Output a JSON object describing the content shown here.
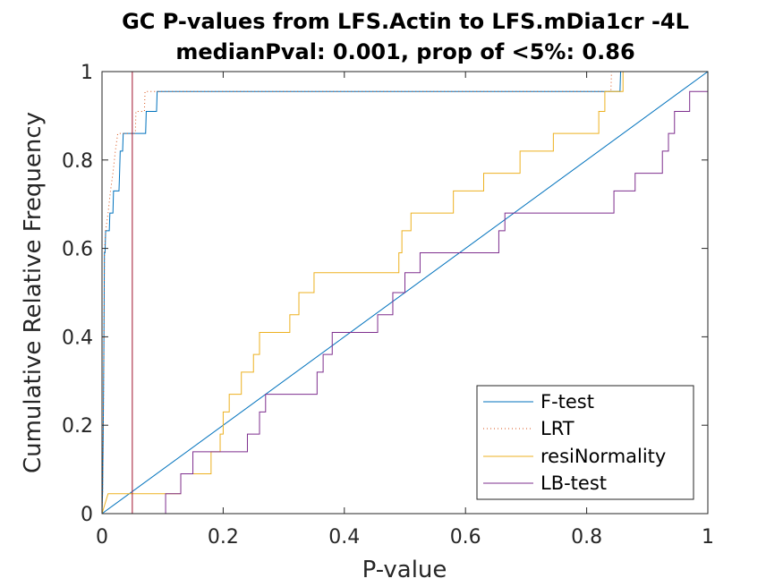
{
  "chart_data": {
    "type": "line",
    "title": [
      "GC P-values from LFS.Actin to LFS.mDia1cr -4L",
      "medianPval: 0.001, prop of <5%: 0.86"
    ],
    "xlabel": "P-value",
    "ylabel": "Cumulative Relative Frequency",
    "xlim": [
      0,
      1
    ],
    "ylim": [
      0,
      1
    ],
    "xticks": [
      "0",
      "0.2",
      "0.4",
      "0.6",
      "0.8",
      "1"
    ],
    "yticks": [
      "0",
      "0.2",
      "0.4",
      "0.6",
      "0.8",
      "1"
    ],
    "grid": false,
    "legend_position": "bottom-right",
    "threshold_line": {
      "x": 0.05,
      "color": "#A2142F"
    },
    "reference_line": {
      "from": [
        0,
        0
      ],
      "to": [
        1,
        1
      ],
      "color": "#0072BD"
    },
    "series": [
      {
        "name": "F-test",
        "color": "#0072BD",
        "style": "solid",
        "values": [
          [
            0,
            0
          ],
          [
            0.001,
            0.05
          ],
          [
            0.002,
            0.18
          ],
          [
            0.003,
            0.36
          ],
          [
            0.004,
            0.59
          ],
          [
            0.005,
            0.59
          ],
          [
            0.006,
            0.64
          ],
          [
            0.012,
            0.64
          ],
          [
            0.013,
            0.68
          ],
          [
            0.018,
            0.68
          ],
          [
            0.019,
            0.73
          ],
          [
            0.028,
            0.73
          ],
          [
            0.029,
            0.77
          ],
          [
            0.03,
            0.82
          ],
          [
            0.034,
            0.82
          ],
          [
            0.035,
            0.86
          ],
          [
            0.072,
            0.86
          ],
          [
            0.073,
            0.91
          ],
          [
            0.09,
            0.91
          ],
          [
            0.091,
            0.955
          ],
          [
            0.855,
            0.955
          ],
          [
            0.856,
            1
          ]
        ]
      },
      {
        "name": "LRT",
        "color": "#D95319",
        "style": "dotted",
        "values": [
          [
            0,
            0
          ],
          [
            0.001,
            0.05
          ],
          [
            0.002,
            0.18
          ],
          [
            0.003,
            0.36
          ],
          [
            0.004,
            0.59
          ],
          [
            0.006,
            0.64
          ],
          [
            0.01,
            0.68
          ],
          [
            0.014,
            0.73
          ],
          [
            0.018,
            0.77
          ],
          [
            0.022,
            0.82
          ],
          [
            0.026,
            0.86
          ],
          [
            0.055,
            0.86
          ],
          [
            0.056,
            0.91
          ],
          [
            0.07,
            0.91
          ],
          [
            0.071,
            0.955
          ],
          [
            0.84,
            0.955
          ],
          [
            0.841,
            1
          ]
        ]
      },
      {
        "name": "resiNormality",
        "color": "#EDB120",
        "style": "solid",
        "values": [
          [
            0,
            0
          ],
          [
            0.01,
            0.045
          ],
          [
            0.13,
            0.045
          ],
          [
            0.13,
            0.09
          ],
          [
            0.18,
            0.09
          ],
          [
            0.18,
            0.14
          ],
          [
            0.195,
            0.14
          ],
          [
            0.195,
            0.18
          ],
          [
            0.2,
            0.18
          ],
          [
            0.2,
            0.23
          ],
          [
            0.21,
            0.23
          ],
          [
            0.21,
            0.27
          ],
          [
            0.23,
            0.27
          ],
          [
            0.23,
            0.32
          ],
          [
            0.25,
            0.32
          ],
          [
            0.25,
            0.36
          ],
          [
            0.26,
            0.36
          ],
          [
            0.26,
            0.41
          ],
          [
            0.31,
            0.41
          ],
          [
            0.31,
            0.45
          ],
          [
            0.325,
            0.45
          ],
          [
            0.325,
            0.5
          ],
          [
            0.35,
            0.5
          ],
          [
            0.35,
            0.545
          ],
          [
            0.49,
            0.545
          ],
          [
            0.49,
            0.59
          ],
          [
            0.495,
            0.59
          ],
          [
            0.495,
            0.64
          ],
          [
            0.51,
            0.64
          ],
          [
            0.51,
            0.68
          ],
          [
            0.58,
            0.68
          ],
          [
            0.58,
            0.73
          ],
          [
            0.63,
            0.73
          ],
          [
            0.63,
            0.77
          ],
          [
            0.69,
            0.77
          ],
          [
            0.69,
            0.82
          ],
          [
            0.745,
            0.82
          ],
          [
            0.745,
            0.86
          ],
          [
            0.82,
            0.86
          ],
          [
            0.82,
            0.91
          ],
          [
            0.83,
            0.91
          ],
          [
            0.83,
            0.955
          ],
          [
            0.86,
            0.955
          ],
          [
            0.86,
            1
          ]
        ]
      },
      {
        "name": "LB-test",
        "color": "#7E2F8E",
        "style": "solid",
        "values": [
          [
            0.105,
            0
          ],
          [
            0.105,
            0.045
          ],
          [
            0.13,
            0.045
          ],
          [
            0.13,
            0.09
          ],
          [
            0.15,
            0.09
          ],
          [
            0.15,
            0.14
          ],
          [
            0.24,
            0.14
          ],
          [
            0.24,
            0.18
          ],
          [
            0.26,
            0.18
          ],
          [
            0.26,
            0.23
          ],
          [
            0.27,
            0.23
          ],
          [
            0.27,
            0.27
          ],
          [
            0.355,
            0.27
          ],
          [
            0.355,
            0.32
          ],
          [
            0.365,
            0.32
          ],
          [
            0.365,
            0.36
          ],
          [
            0.38,
            0.36
          ],
          [
            0.38,
            0.41
          ],
          [
            0.455,
            0.41
          ],
          [
            0.455,
            0.45
          ],
          [
            0.48,
            0.45
          ],
          [
            0.48,
            0.5
          ],
          [
            0.5,
            0.5
          ],
          [
            0.5,
            0.545
          ],
          [
            0.525,
            0.545
          ],
          [
            0.525,
            0.59
          ],
          [
            0.655,
            0.59
          ],
          [
            0.655,
            0.64
          ],
          [
            0.665,
            0.64
          ],
          [
            0.665,
            0.68
          ],
          [
            0.845,
            0.68
          ],
          [
            0.845,
            0.73
          ],
          [
            0.88,
            0.73
          ],
          [
            0.88,
            0.77
          ],
          [
            0.925,
            0.77
          ],
          [
            0.925,
            0.82
          ],
          [
            0.935,
            0.82
          ],
          [
            0.935,
            0.86
          ],
          [
            0.945,
            0.86
          ],
          [
            0.945,
            0.91
          ],
          [
            0.97,
            0.91
          ],
          [
            0.97,
            0.955
          ],
          [
            1,
            0.955
          ]
        ]
      }
    ]
  }
}
